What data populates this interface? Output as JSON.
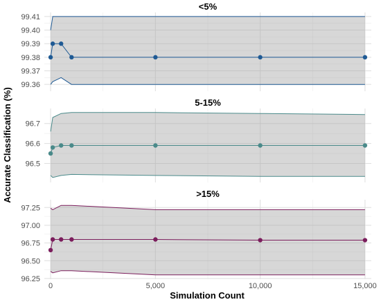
{
  "chart_data": {
    "type": "line",
    "xlabel": "Simulation Count",
    "ylabel": "Accurate Classification (%)",
    "xlim": [
      -300,
      15300
    ],
    "x_ticks": [
      0,
      5000,
      10000,
      15000
    ],
    "x_tick_labels": [
      "0",
      "5,000",
      "10,000",
      "15,000"
    ],
    "grid": true,
    "legend": "none",
    "panels": [
      {
        "title": "<5%",
        "color": "#1f5a94",
        "ylim": [
          99.355,
          99.413
        ],
        "y_ticks": [
          99.36,
          99.37,
          99.38,
          99.39,
          99.4,
          99.41
        ],
        "y_tick_labels": [
          "99.36",
          "99.37",
          "99.38",
          "99.39",
          "99.40",
          "99.41"
        ],
        "points": {
          "x": [
            0,
            100,
            500,
            1000,
            5000,
            10000,
            15000
          ],
          "y": [
            99.38,
            99.39,
            99.39,
            99.38,
            99.38,
            99.38,
            99.38
          ]
        },
        "upper": {
          "x": [
            0,
            100,
            500,
            1000,
            5000,
            10000,
            15000
          ],
          "y": [
            99.4,
            99.41,
            99.41,
            99.41,
            99.41,
            99.41,
            99.41
          ]
        },
        "lower": {
          "x": [
            0,
            100,
            500,
            1000,
            5000,
            10000,
            15000
          ],
          "y": [
            99.36,
            99.362,
            99.365,
            99.36,
            99.36,
            99.36,
            99.36
          ]
        }
      },
      {
        "title": "5-15%",
        "color": "#4a8a8a",
        "ylim": [
          96.405,
          96.775
        ],
        "y_ticks": [
          96.5,
          96.6,
          96.7
        ],
        "y_tick_labels": [
          "96.5",
          "96.6",
          "96.7"
        ],
        "points": {
          "x": [
            0,
            100,
            500,
            1000,
            5000,
            10000,
            15000
          ],
          "y": [
            96.55,
            96.58,
            96.59,
            96.59,
            96.59,
            96.59,
            96.59
          ]
        },
        "upper": {
          "x": [
            0,
            100,
            500,
            1000,
            5000,
            10000,
            15000
          ],
          "y": [
            96.66,
            96.73,
            96.75,
            96.755,
            96.755,
            96.75,
            96.745
          ]
        },
        "lower": {
          "x": [
            0,
            100,
            500,
            1000,
            5000,
            10000,
            15000
          ],
          "y": [
            96.44,
            96.43,
            96.44,
            96.445,
            96.44,
            96.435,
            96.435
          ]
        }
      },
      {
        "title": ">15%",
        "color": "#7b1d5c",
        "ylim": [
          96.24,
          97.36
        ],
        "y_ticks": [
          96.25,
          96.5,
          96.75,
          97.0,
          97.25
        ],
        "y_tick_labels": [
          "96.25",
          "96.50",
          "96.75",
          "97.00",
          "97.25"
        ],
        "points": {
          "x": [
            0,
            100,
            500,
            1000,
            5000,
            10000,
            15000
          ],
          "y": [
            96.65,
            96.8,
            96.8,
            96.8,
            96.8,
            96.79,
            96.79
          ]
        },
        "upper": {
          "x": [
            0,
            100,
            500,
            1000,
            5000,
            10000,
            15000
          ],
          "y": [
            97.24,
            97.22,
            97.28,
            97.28,
            97.22,
            97.22,
            97.22
          ]
        },
        "lower": {
          "x": [
            0,
            100,
            500,
            1000,
            5000,
            10000,
            15000
          ],
          "y": [
            96.35,
            96.33,
            96.36,
            96.36,
            96.3,
            96.3,
            96.3
          ]
        }
      }
    ]
  }
}
